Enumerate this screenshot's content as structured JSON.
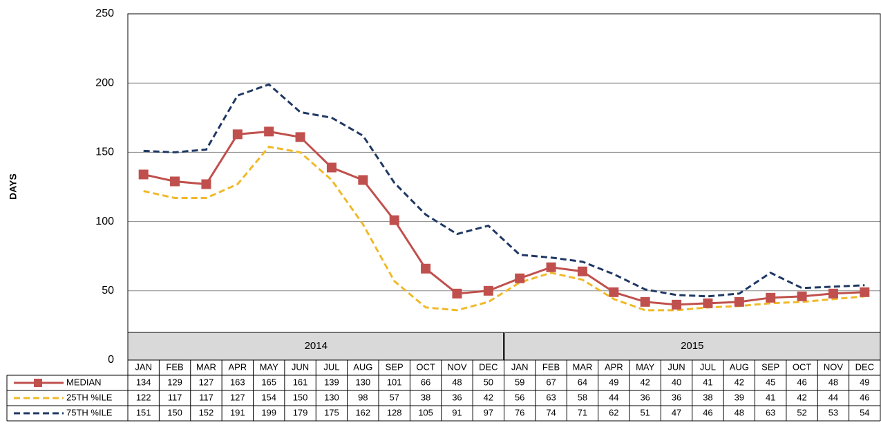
{
  "chart_data": {
    "type": "line",
    "y_label": "DAYS",
    "categories": [
      "JAN",
      "FEB",
      "MAR",
      "APR",
      "MAY",
      "JUN",
      "JUL",
      "AUG",
      "SEP",
      "OCT",
      "NOV",
      "DEC",
      "JAN",
      "FEB",
      "MAR",
      "APR",
      "MAY",
      "JUN",
      "JUL",
      "AUG",
      "SEP",
      "OCT",
      "NOV",
      "DEC"
    ],
    "x_groups": [
      "2014",
      "2015"
    ],
    "series": [
      {
        "name": "MEDIAN",
        "color": "#c0504d",
        "line_style": "solid",
        "marker": "square",
        "values": [
          134,
          129,
          127,
          163,
          165,
          161,
          139,
          130,
          101,
          66,
          48,
          50,
          59,
          67,
          64,
          49,
          42,
          40,
          41,
          42,
          45,
          46,
          48,
          49
        ]
      },
      {
        "name": "25TH %ILE",
        "color": "#f0b929",
        "line_style": "dashed",
        "marker": "none",
        "values": [
          122,
          117,
          117,
          127,
          154,
          150,
          130,
          98,
          57,
          38,
          36,
          42,
          56,
          63,
          58,
          44,
          36,
          36,
          38,
          39,
          41,
          42,
          44,
          46
        ]
      },
      {
        "name": "75TH %ILE",
        "color": "#1f3864",
        "line_style": "dashed",
        "marker": "none",
        "values": [
          151,
          150,
          152,
          191,
          199,
          179,
          175,
          162,
          128,
          105,
          91,
          97,
          76,
          74,
          71,
          62,
          51,
          47,
          46,
          48,
          63,
          52,
          53,
          54
        ]
      }
    ],
    "ylim": [
      0,
      250
    ],
    "yticks": [
      0,
      50,
      100,
      150,
      200,
      250
    ],
    "grid": true,
    "data_table": true
  }
}
